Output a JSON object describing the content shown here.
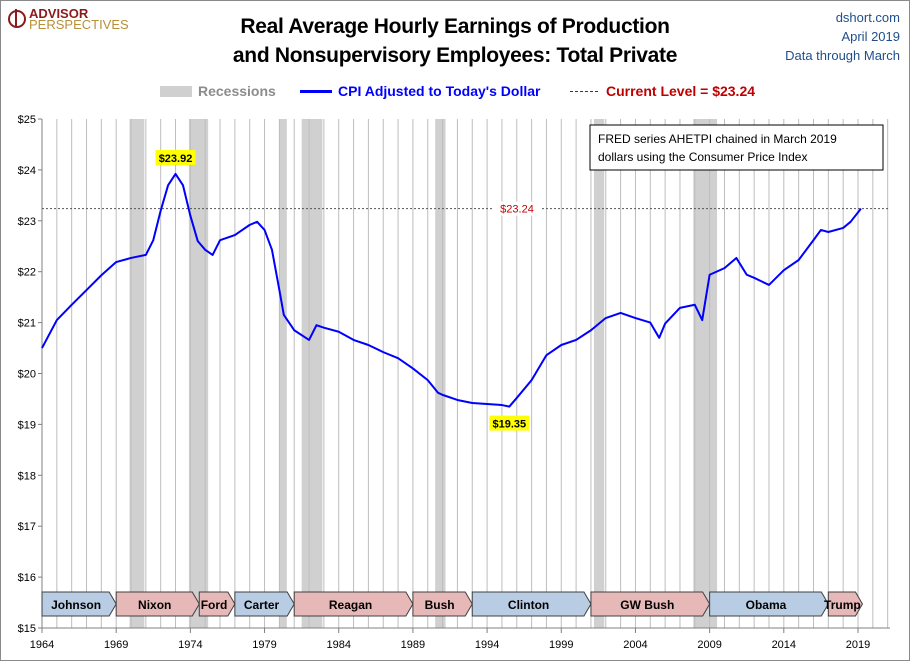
{
  "header": {
    "logo": {
      "line1": "ADVISOR",
      "line2": "PERSPECTIVES"
    },
    "title_line1": "Real Average Hourly Earnings of Production",
    "title_line2": "and Nonsupervisory Employees: Total Private",
    "source": "dshort.com",
    "date": "April 2019",
    "data_through": "Data through March"
  },
  "legend": {
    "recessions": "Recessions",
    "series": "CPI Adjusted to Today's Dollar",
    "current": "Current Level = $23.24"
  },
  "colors": {
    "series": "#0000ff",
    "current": "#c00000",
    "recession": "#d0d0d0",
    "dem": "#b8cce4",
    "rep": "#e6b8b7",
    "callout": "#ffff00"
  },
  "note": {
    "line1": "FRED series AHETPI chained in March 2019",
    "line2": "dollars using the Consumer Price Index"
  },
  "chart_data": {
    "type": "line",
    "title": "Real Average Hourly Earnings of Production and Nonsupervisory Employees: Total Private",
    "xlim": [
      1964,
      2021.2
    ],
    "ylim": [
      15,
      25
    ],
    "x_ticks": [
      "1964",
      "1969",
      "1974",
      "1979",
      "1984",
      "1989",
      "1994",
      "1999",
      "2004",
      "2009",
      "2014",
      "2019"
    ],
    "y_ticks": [
      "$15",
      "$16",
      "$17",
      "$18",
      "$19",
      "$20",
      "$21",
      "$22",
      "$23",
      "$24",
      "$25"
    ],
    "grid": "vertical yearly",
    "series": [
      {
        "name": "CPI Adjusted to Today's Dollar",
        "x": [
          1964,
          1965,
          1966,
          1967,
          1968,
          1969,
          1970,
          1971,
          1971.5,
          1972,
          1972.5,
          1973,
          1973.5,
          1974,
          1974.5,
          1975,
          1975.5,
          1976,
          1977,
          1978,
          1978.5,
          1979,
          1979.5,
          1980,
          1980.3,
          1981,
          1982,
          1982.5,
          1983,
          1984,
          1985,
          1986,
          1987,
          1988,
          1989,
          1990,
          1990.7,
          1991,
          1992,
          1993,
          1994,
          1995,
          1995.5,
          1996,
          1997,
          1998,
          1999,
          2000,
          2001,
          2002,
          2003,
          2004,
          2005,
          2005.6,
          2006,
          2007,
          2008,
          2008.5,
          2009,
          2010,
          2010.8,
          2011.5,
          2012,
          2013,
          2014,
          2015,
          2016,
          2016.5,
          2017,
          2018,
          2018.5,
          2019.2
        ],
        "y": [
          20.5,
          21.05,
          21.35,
          21.64,
          21.93,
          22.19,
          22.27,
          22.33,
          22.62,
          23.2,
          23.7,
          23.92,
          23.7,
          23.1,
          22.6,
          22.43,
          22.33,
          22.62,
          22.72,
          22.92,
          22.98,
          22.82,
          22.43,
          21.64,
          21.15,
          20.85,
          20.66,
          20.95,
          20.9,
          20.82,
          20.66,
          20.56,
          20.42,
          20.3,
          20.1,
          19.87,
          19.62,
          19.58,
          19.48,
          19.42,
          19.4,
          19.38,
          19.35,
          19.52,
          19.87,
          20.36,
          20.56,
          20.66,
          20.85,
          21.09,
          21.19,
          21.09,
          21.0,
          20.7,
          20.98,
          21.29,
          21.35,
          21.05,
          21.94,
          22.07,
          22.27,
          21.94,
          21.88,
          21.74,
          22.03,
          22.23,
          22.62,
          22.82,
          22.78,
          22.86,
          22.98,
          23.24
        ]
      }
    ],
    "current_level": 23.24,
    "current_label": "$23.24",
    "annotations": [
      {
        "x": 1973,
        "y": 23.92,
        "label": "$23.92"
      },
      {
        "x": 1995.5,
        "y": 19.35,
        "label": "$19.35"
      }
    ],
    "recessions": [
      [
        1969.9,
        1970.9
      ],
      [
        1973.9,
        1975.2
      ],
      [
        1980.0,
        1980.5
      ],
      [
        1981.5,
        1982.9
      ],
      [
        1990.5,
        1991.2
      ],
      [
        2001.2,
        2001.9
      ],
      [
        2007.9,
        2009.5
      ]
    ],
    "presidents": [
      {
        "name": "Johnson",
        "start": 1964,
        "end": 1969,
        "party": "dem"
      },
      {
        "name": "Nixon",
        "start": 1969,
        "end": 1974.6,
        "party": "rep"
      },
      {
        "name": "Ford",
        "start": 1974.6,
        "end": 1977,
        "party": "rep"
      },
      {
        "name": "Carter",
        "start": 1977,
        "end": 1981,
        "party": "dem"
      },
      {
        "name": "Reagan",
        "start": 1981,
        "end": 1989,
        "party": "rep"
      },
      {
        "name": "Bush",
        "start": 1989,
        "end": 1993,
        "party": "rep"
      },
      {
        "name": "Clinton",
        "start": 1993,
        "end": 2001,
        "party": "dem"
      },
      {
        "name": "GW Bush",
        "start": 2001,
        "end": 2009,
        "party": "rep"
      },
      {
        "name": "Obama",
        "start": 2009,
        "end": 2017,
        "party": "dem"
      },
      {
        "name": "Trump",
        "start": 2017,
        "end": 2019.3,
        "party": "rep"
      }
    ]
  }
}
